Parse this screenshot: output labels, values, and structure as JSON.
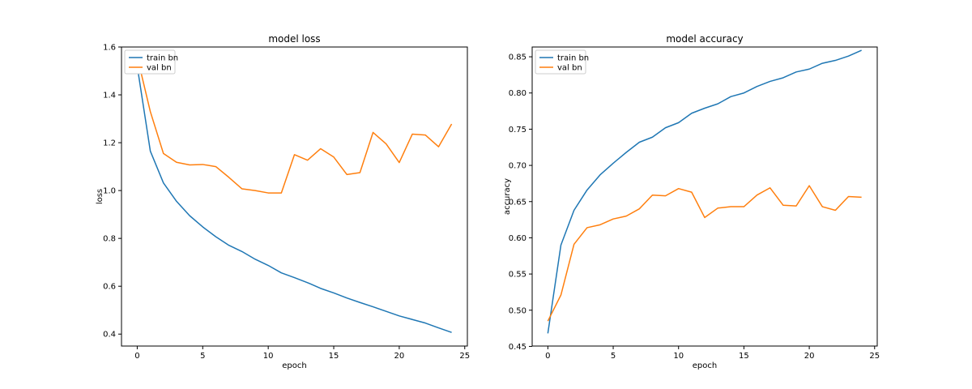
{
  "chart_data": [
    {
      "type": "line",
      "title": "model loss",
      "xlabel": "epoch",
      "ylabel": "loss",
      "xlim": [
        -1.2,
        25.2
      ],
      "ylim": [
        0.35,
        1.6
      ],
      "xticks": [
        0,
        5,
        10,
        15,
        20,
        25
      ],
      "yticks": [
        0.4,
        0.6,
        0.8,
        1.0,
        1.2,
        1.4,
        1.6
      ],
      "ytick_labels": [
        "0.4",
        "0.6",
        "0.8",
        "1.0",
        "1.2",
        "1.4",
        "1.6"
      ],
      "legend": "top-left",
      "grid": false,
      "x": [
        0,
        1,
        2,
        3,
        4,
        5,
        6,
        7,
        8,
        9,
        10,
        11,
        12,
        13,
        14,
        15,
        16,
        17,
        18,
        19,
        20,
        21,
        22,
        23,
        24
      ],
      "series": [
        {
          "name": "train bn",
          "color": "#1f77b4",
          "values": [
            1.52,
            1.165,
            1.032,
            0.955,
            0.895,
            0.848,
            0.807,
            0.771,
            0.745,
            0.713,
            0.687,
            0.656,
            0.636,
            0.615,
            0.591,
            0.572,
            0.551,
            0.532,
            0.514,
            0.495,
            0.476,
            0.461,
            0.446,
            0.426,
            0.407
          ]
        },
        {
          "name": "val bn",
          "color": "#ff7f0e",
          "values": [
            1.56,
            1.33,
            1.155,
            1.118,
            1.107,
            1.109,
            1.1,
            1.055,
            1.007,
            1.0,
            0.99,
            0.99,
            1.15,
            1.127,
            1.175,
            1.14,
            1.067,
            1.075,
            1.243,
            1.195,
            1.117,
            1.236,
            1.232,
            1.183,
            1.278
          ]
        }
      ]
    },
    {
      "type": "line",
      "title": "model accuracy",
      "xlabel": "epoch",
      "ylabel": "accuracy",
      "xlim": [
        -1.2,
        25.2
      ],
      "ylim": [
        0.4505,
        0.8635
      ],
      "xticks": [
        0,
        5,
        10,
        15,
        20,
        25
      ],
      "yticks": [
        0.45,
        0.5,
        0.55,
        0.6,
        0.65,
        0.7,
        0.75,
        0.8,
        0.85
      ],
      "ytick_labels": [
        "0.45",
        "0.50",
        "0.55",
        "0.60",
        "0.65",
        "0.70",
        "0.75",
        "0.80",
        "0.85"
      ],
      "legend": "top-left",
      "grid": false,
      "x": [
        0,
        1,
        2,
        3,
        4,
        5,
        6,
        7,
        8,
        9,
        10,
        11,
        12,
        13,
        14,
        15,
        16,
        17,
        18,
        19,
        20,
        21,
        22,
        23,
        24
      ],
      "series": [
        {
          "name": "train bn",
          "color": "#1f77b4",
          "values": [
            0.468,
            0.59,
            0.638,
            0.666,
            0.687,
            0.703,
            0.718,
            0.732,
            0.739,
            0.752,
            0.759,
            0.772,
            0.779,
            0.785,
            0.795,
            0.8,
            0.809,
            0.816,
            0.821,
            0.829,
            0.833,
            0.841,
            0.845,
            0.851,
            0.859
          ]
        },
        {
          "name": "val bn",
          "color": "#ff7f0e",
          "values": [
            0.485,
            0.521,
            0.591,
            0.614,
            0.618,
            0.626,
            0.63,
            0.64,
            0.659,
            0.658,
            0.668,
            0.663,
            0.628,
            0.641,
            0.643,
            0.643,
            0.659,
            0.669,
            0.645,
            0.644,
            0.672,
            0.643,
            0.638,
            0.657,
            0.656
          ]
        }
      ]
    }
  ]
}
